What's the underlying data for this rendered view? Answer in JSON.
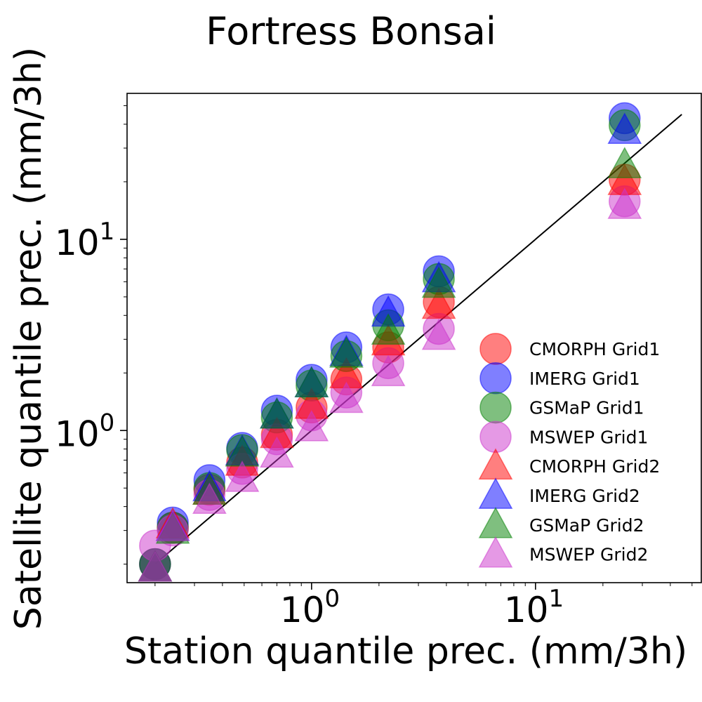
{
  "chart_data": {
    "type": "scatter",
    "title": "Fortress Bonsai",
    "xlabel": "Station quantile prec. (mm/3h)",
    "ylabel": "Satellite quantile prec. (mm/3h)",
    "x_scale": "log",
    "y_scale": "log",
    "xlim": [
      0.15,
      55
    ],
    "ylim": [
      0.16,
      58
    ],
    "x_ticks": [
      {
        "base": "10",
        "exp": "0",
        "value": 1
      },
      {
        "base": "10",
        "exp": "1",
        "value": 10
      }
    ],
    "y_ticks": [
      {
        "base": "10",
        "exp": "0",
        "value": 1
      },
      {
        "base": "10",
        "exp": "1",
        "value": 10
      }
    ],
    "grid": false,
    "legend_position": "lower-right",
    "reference_line": {
      "x": [
        0.2,
        45
      ],
      "y": [
        0.2,
        45
      ],
      "color": "#000000"
    },
    "x": [
      0.2,
      0.24,
      0.35,
      0.49,
      0.7,
      1.0,
      1.43,
      2.2,
      3.7,
      25.0
    ],
    "series": [
      {
        "name": "CMORPH Grid1",
        "marker": "circle",
        "color": "#ff0000",
        "values": [
          0.2,
          0.31,
          0.49,
          0.68,
          0.95,
          1.32,
          1.85,
          2.72,
          4.7,
          20.5
        ]
      },
      {
        "name": "IMERG Grid1",
        "marker": "circle",
        "color": "#0000ff",
        "values": [
          0.2,
          0.33,
          0.55,
          0.81,
          1.27,
          1.84,
          2.72,
          4.3,
          6.8,
          43.0
        ]
      },
      {
        "name": "GSMaP Grid1",
        "marker": "circle",
        "color": "#008000",
        "values": [
          0.2,
          0.31,
          0.5,
          0.79,
          1.17,
          1.72,
          2.45,
          3.55,
          6.2,
          39.5
        ]
      },
      {
        "name": "MSWEP Grid1",
        "marker": "circle",
        "color": "#cc33cc",
        "values": [
          0.25,
          0.3,
          0.46,
          0.63,
          0.9,
          1.2,
          1.58,
          2.25,
          3.4,
          15.8
        ]
      },
      {
        "name": "CMORPH Grid2",
        "marker": "triangle",
        "color": "#ff0000",
        "values": [
          0.19,
          0.32,
          0.48,
          0.68,
          0.95,
          1.35,
          1.95,
          2.9,
          4.5,
          20.0
        ]
      },
      {
        "name": "IMERG Grid2",
        "marker": "triangle",
        "color": "#0000ff",
        "values": [
          0.19,
          0.31,
          0.5,
          0.77,
          1.2,
          1.75,
          2.55,
          4.1,
          6.2,
          37.0
        ]
      },
      {
        "name": "GSMaP Grid2",
        "marker": "triangle",
        "color": "#008000",
        "values": [
          0.19,
          0.3,
          0.48,
          0.76,
          1.2,
          1.75,
          2.5,
          3.3,
          5.8,
          24.5
        ]
      },
      {
        "name": "MSWEP Grid2",
        "marker": "triangle",
        "color": "#cc33cc",
        "values": [
          0.19,
          0.31,
          0.43,
          0.56,
          0.75,
          1.03,
          1.45,
          2.0,
          3.1,
          15.0
        ]
      }
    ]
  }
}
